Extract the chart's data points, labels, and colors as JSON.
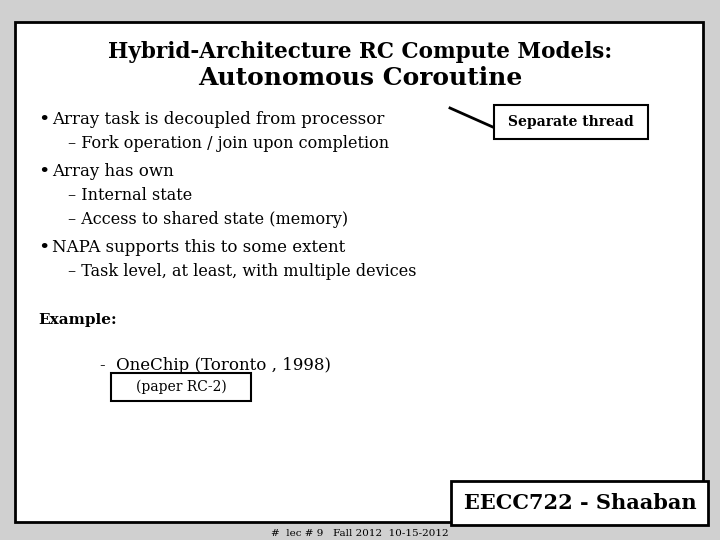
{
  "bg_color": "#d0d0d0",
  "slide_bg": "#ffffff",
  "title_line1": "Hybrid-Architecture RC Compute Models:",
  "title_line2": "Autonomous Coroutine",
  "bullet1": "Array task is decoupled from processor",
  "sub1": "– Fork operation / join upon completion",
  "bullet2": "Array has own",
  "sub2a": "– Internal state",
  "sub2b": "– Access to shared state (memory)",
  "bullet3": "NAPA supports this to some extent",
  "sub3": "– Task level, at least, with multiple devices",
  "example_label": "Example:",
  "example_item": "-  OneChip (Toronto , 1998)",
  "paper_box": "(paper RC-2)",
  "separate_thread": "Separate thread",
  "footer_main": "EECC722 - Shaaban",
  "footer_sub": "#  lec # 9   Fall 2012  10-15-2012",
  "text_color": "#000000",
  "border_color": "#000000"
}
